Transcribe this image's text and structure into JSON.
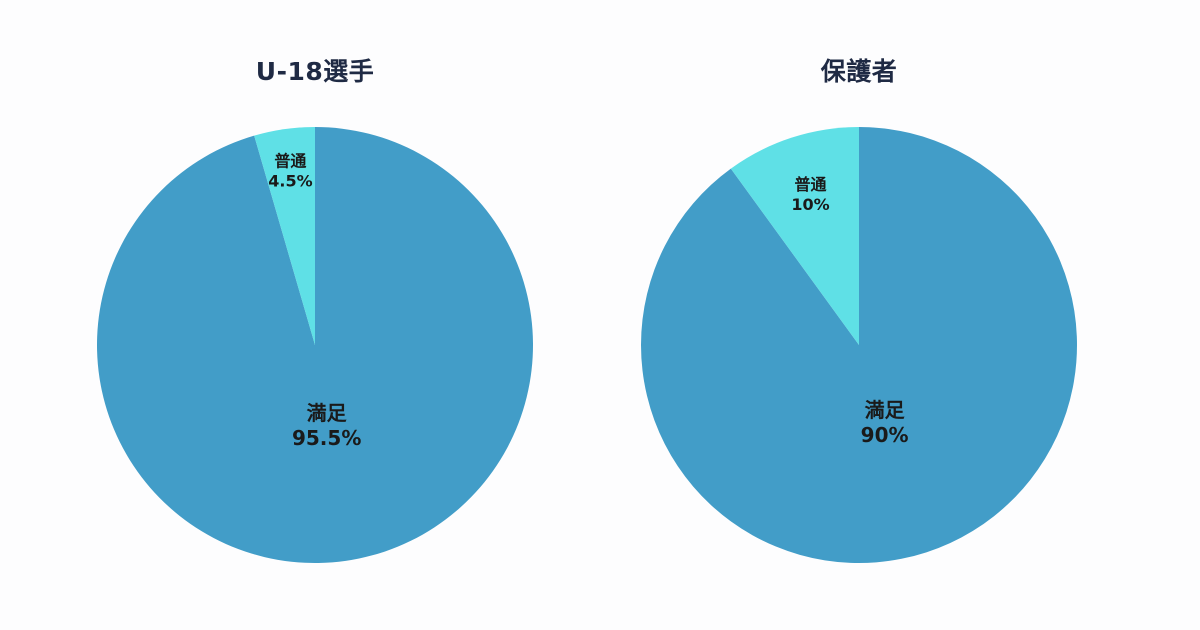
{
  "chart_data": [
    {
      "type": "pie",
      "title": "U-18選手",
      "slices": [
        {
          "label": "満足",
          "value": 95.5,
          "value_label": "95.5%",
          "color": "#429dc8"
        },
        {
          "label": "普通",
          "value": 4.5,
          "value_label": "4.5%",
          "color": "#5fe0e6"
        }
      ]
    },
    {
      "type": "pie",
      "title": "保護者",
      "slices": [
        {
          "label": "満足",
          "value": 90,
          "value_label": "90%",
          "color": "#429dc8"
        },
        {
          "label": "普通",
          "value": 10,
          "value_label": "10%",
          "color": "#5fe0e6"
        }
      ]
    }
  ]
}
